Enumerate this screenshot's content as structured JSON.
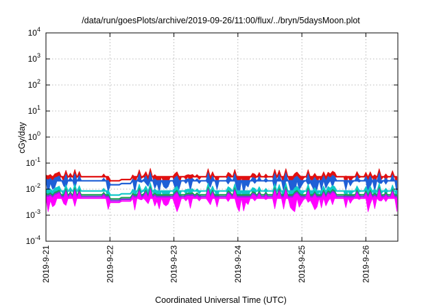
{
  "chart_data": {
    "type": "area",
    "title": "/data/run/goesPlots/archive/2019-09-26/11:00/flux/../bryn/5daysMoon.plot",
    "xlabel": "Coordinated Universal Time (UTC)",
    "ylabel": "cGy/day",
    "yscale": "log",
    "ylim": [
      0.0001,
      10000
    ],
    "xlim": [
      "2019-09-21T00:00",
      "2019-09-26T12:00"
    ],
    "grid": true,
    "legend": "none",
    "y_ticks": [
      {
        "value": 0.0001,
        "base": "10",
        "exp": "-4"
      },
      {
        "value": 0.001,
        "base": "10",
        "exp": "-3"
      },
      {
        "value": 0.01,
        "base": "10",
        "exp": "-2"
      },
      {
        "value": 0.1,
        "base": "10",
        "exp": "-1"
      },
      {
        "value": 1,
        "base": "10",
        "exp": "0"
      },
      {
        "value": 10,
        "base": "10",
        "exp": "1"
      },
      {
        "value": 100,
        "base": "10",
        "exp": "2"
      },
      {
        "value": 1000,
        "base": "10",
        "exp": "3"
      },
      {
        "value": 10000,
        "base": "10",
        "exp": "4"
      }
    ],
    "x_ticks": [
      {
        "value": "2019-09-21",
        "label": "2019-9-21"
      },
      {
        "value": "2019-09-22",
        "label": "2019-9-22"
      },
      {
        "value": "2019-09-23",
        "label": "2019-9-23"
      },
      {
        "value": "2019-09-24",
        "label": "2019-9-24"
      },
      {
        "value": "2019-09-25",
        "label": "2019-9-25"
      },
      {
        "value": "2019-09-26",
        "label": "2019-9-26"
      }
    ],
    "series": [
      {
        "color": "#e01010",
        "base_value": 0.03
      },
      {
        "color": "#1f5fd6",
        "base_value": 0.021
      },
      {
        "color": "#10c8c8",
        "base_value": 0.0085
      },
      {
        "color": "#18a050",
        "base_value": 0.006
      },
      {
        "color": "#8a2be2",
        "base_value": 0.0052
      },
      {
        "color": "#ff00ff",
        "base_value": 0.0045
      }
    ],
    "segments": [
      {
        "start": "2019-09-21T00:00",
        "end": "2019-09-21T14:00",
        "level": 1.0,
        "spiky": true
      },
      {
        "start": "2019-09-21T14:00",
        "end": "2019-09-21T21:00",
        "level": 1.0,
        "spiky": false
      },
      {
        "start": "2019-09-21T21:00",
        "end": "2019-09-22T00:00",
        "level": 1.0,
        "spiky": true
      },
      {
        "start": "2019-09-22T00:00",
        "end": "2019-09-22T04:00",
        "level": 0.7,
        "spiky": false
      },
      {
        "start": "2019-09-22T04:00",
        "end": "2019-09-22T08:00",
        "level": 0.78,
        "spiky": false
      },
      {
        "start": "2019-09-22T08:00",
        "end": "2019-09-26T12:00",
        "level": 1.0,
        "spiky": true
      }
    ]
  }
}
